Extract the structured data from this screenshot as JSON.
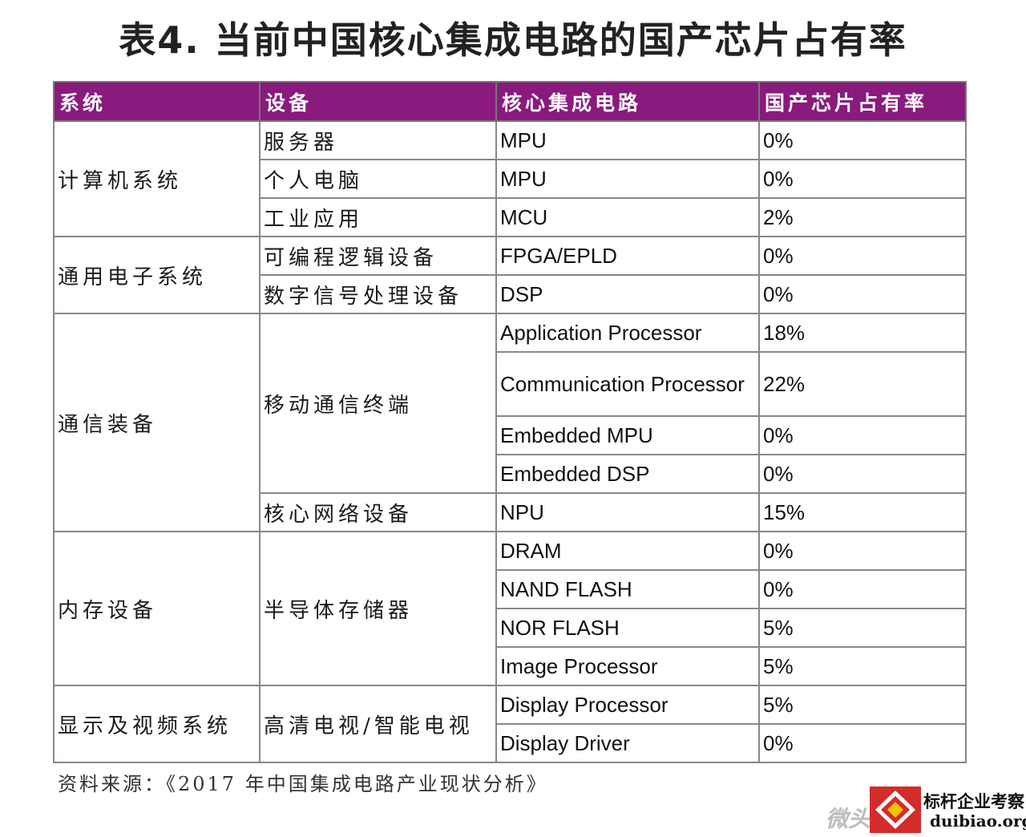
{
  "title": "表4. 当前中国核心集成电路的国产芯片占有率",
  "header": {
    "col1": "系统",
    "col2": "设备",
    "col3": "核心集成电路",
    "col4": "国产芯片占有率"
  },
  "groups": {
    "computer": "计算机系统",
    "general": "通用电子系统",
    "comm": "通信装备",
    "memory": "内存设备",
    "display": "显示及视频系统"
  },
  "devices": {
    "server": "服务器",
    "pc": "个人电脑",
    "industrial": "工业应用",
    "programmable": "可编程逻辑设备",
    "dsp_device": "数字信号处理设备",
    "mobile": "移动通信终端",
    "network": "核心网络设备",
    "semiconductor": "半导体存储器",
    "tv": "高清电视/智能电视"
  },
  "rows": [
    {
      "ic": "MPU",
      "share": "0%"
    },
    {
      "ic": "MPU",
      "share": "0%"
    },
    {
      "ic": "MCU",
      "share": "2%"
    },
    {
      "ic": "FPGA/EPLD",
      "share": "0%"
    },
    {
      "ic": "DSP",
      "share": "0%"
    },
    {
      "ic": "Application Processor",
      "share": "18%"
    },
    {
      "ic": "Communication Processor",
      "share": "22%"
    },
    {
      "ic": "Embedded MPU",
      "share": "0%"
    },
    {
      "ic": "Embedded DSP",
      "share": "0%"
    },
    {
      "ic": "NPU",
      "share": "15%"
    },
    {
      "ic": "DRAM",
      "share": "0%"
    },
    {
      "ic": "NAND FLASH",
      "share": "0%"
    },
    {
      "ic": "NOR FLASH",
      "share": "5%"
    },
    {
      "ic": "Image Processor",
      "share": "5%"
    },
    {
      "ic": "Display Processor",
      "share": "5%"
    },
    {
      "ic": "Display Driver",
      "share": "0%"
    }
  ],
  "source": "资料来源：《2017 年中国集成电路产业现状分析》",
  "watermark": {
    "left_text": "微头",
    "title": "标杆企业考察",
    "url": "duibiao.org"
  },
  "colors": {
    "header_bg": "#8a1a7e",
    "logo_red": "#d42b2b"
  }
}
